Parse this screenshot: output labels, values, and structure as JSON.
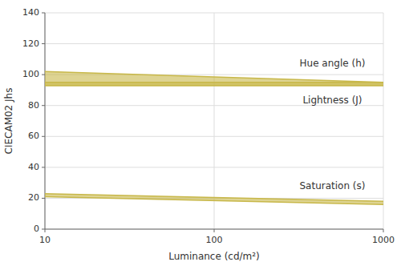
{
  "chart_data": {
    "type": "band",
    "x": [
      10,
      1000
    ],
    "series": [
      {
        "lower": [
          93,
          93
        ],
        "upper": [
          102,
          95
        ]
      },
      {
        "lower": [
          93,
          93
        ],
        "upper": [
          95,
          95
        ]
      },
      {
        "lower": [
          21,
          16
        ],
        "upper": [
          23,
          18
        ]
      }
    ],
    "color": "#C8B84A",
    "xlabel": "Luminance (cd/m²)",
    "ylabel": "CIECAM02 Jhs",
    "log": "x",
    "xlim": [
      10,
      1000
    ],
    "ylim": [
      0,
      140
    ],
    "xticks": [
      10,
      100,
      1000
    ],
    "yticks": [
      0,
      20,
      40,
      60,
      80,
      100,
      120,
      140
    ],
    "grid": true,
    "annotations": [
      {
        "text": "Hue angle (h)",
        "x": 500,
        "y": 107
      },
      {
        "text": "Lightness (J)",
        "x": 500,
        "y": 83
      },
      {
        "text": "Saturation (s)",
        "x": 500,
        "y": 28
      }
    ]
  }
}
